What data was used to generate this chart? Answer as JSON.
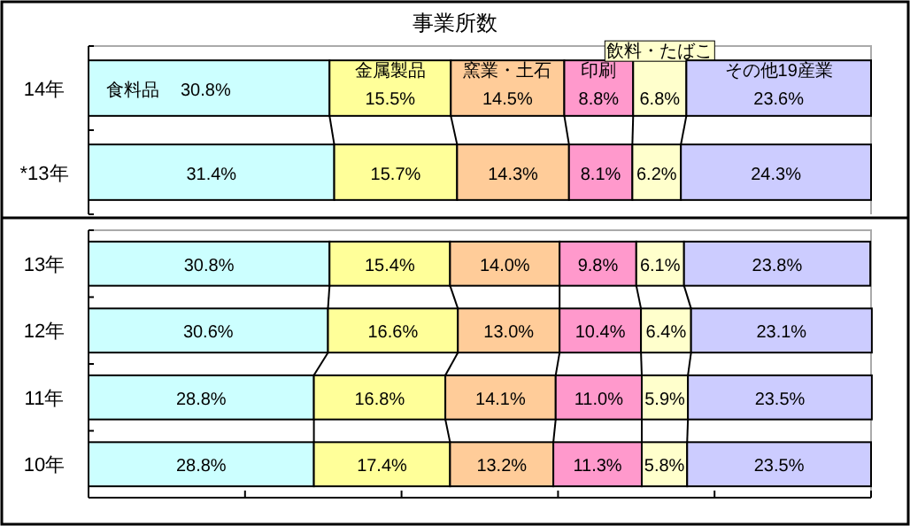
{
  "chart_data": [
    {
      "type": "bar",
      "title": "事業所数",
      "orientation": "horizontal",
      "stacked": true,
      "tick_labels": "y",
      "xlim": [
        0,
        100
      ],
      "categories": [
        "14年",
        "*13年"
      ],
      "series": [
        {
          "name": "食料品",
          "color": "#ccffff",
          "values": [
            30.8,
            31.4
          ],
          "value_labels": [
            "30.8%",
            "31.4%"
          ]
        },
        {
          "name": "金属製品",
          "color": "#ffff99",
          "values": [
            15.5,
            15.7
          ],
          "value_labels": [
            "15.5%",
            "15.7%"
          ]
        },
        {
          "name": "窯業・土石",
          "color": "#ffcc99",
          "values": [
            14.5,
            14.3
          ],
          "value_labels": [
            "14.5%",
            "14.3%"
          ]
        },
        {
          "name": "印刷",
          "color": "#ff99cc",
          "values": [
            8.8,
            8.1
          ],
          "value_labels": [
            "8.8%",
            "8.1%"
          ]
        },
        {
          "name": "飲料・たばこ",
          "color": "#ffffcc",
          "values": [
            6.8,
            6.2
          ],
          "value_labels": [
            "6.8%",
            "6.2%"
          ]
        },
        {
          "name": "その他19産業",
          "color": "#ccccff",
          "values": [
            23.6,
            24.3
          ],
          "value_labels": [
            "23.6%",
            "24.3%"
          ]
        }
      ]
    },
    {
      "type": "bar",
      "orientation": "horizontal",
      "stacked": true,
      "tick_labels": "y",
      "xlim": [
        0,
        100
      ],
      "xticks": [
        {
          "value": 0,
          "label": null
        },
        {
          "value": 20,
          "label": null
        },
        {
          "value": 40,
          "label": null
        },
        {
          "value": 60,
          "label": null
        },
        {
          "value": 80,
          "label": null
        },
        {
          "value": 100,
          "label": null
        }
      ],
      "categories": [
        "13年",
        "12年",
        "11年",
        "10年"
      ],
      "series": [
        {
          "color": "#ccffff",
          "values": [
            30.8,
            30.6,
            28.8,
            28.8
          ],
          "value_labels": [
            "30.8%",
            "30.6%",
            "28.8%",
            "28.8%"
          ]
        },
        {
          "color": "#ffff99",
          "values": [
            15.4,
            16.6,
            16.8,
            17.4
          ],
          "value_labels": [
            "15.4%",
            "16.6%",
            "16.8%",
            "17.4%"
          ]
        },
        {
          "color": "#ffcc99",
          "values": [
            14.0,
            13.0,
            14.1,
            13.2
          ],
          "value_labels": [
            "14.0%",
            "13.0%",
            "14.1%",
            "13.2%"
          ]
        },
        {
          "color": "#ff99cc",
          "values": [
            9.8,
            10.4,
            11.0,
            11.3
          ],
          "value_labels": [
            "9.8%",
            "10.4%",
            "11.0%",
            "11.3%"
          ]
        },
        {
          "color": "#ffffcc",
          "values": [
            6.1,
            6.4,
            5.9,
            5.8
          ],
          "value_labels": [
            "6.1%",
            "6.4%",
            "5.9%",
            "5.8%"
          ]
        },
        {
          "color": "#ccccff",
          "values": [
            23.8,
            23.1,
            23.5,
            23.5
          ],
          "value_labels": [
            "23.8%",
            "23.1%",
            "23.5%",
            "23.5%"
          ]
        }
      ]
    }
  ]
}
